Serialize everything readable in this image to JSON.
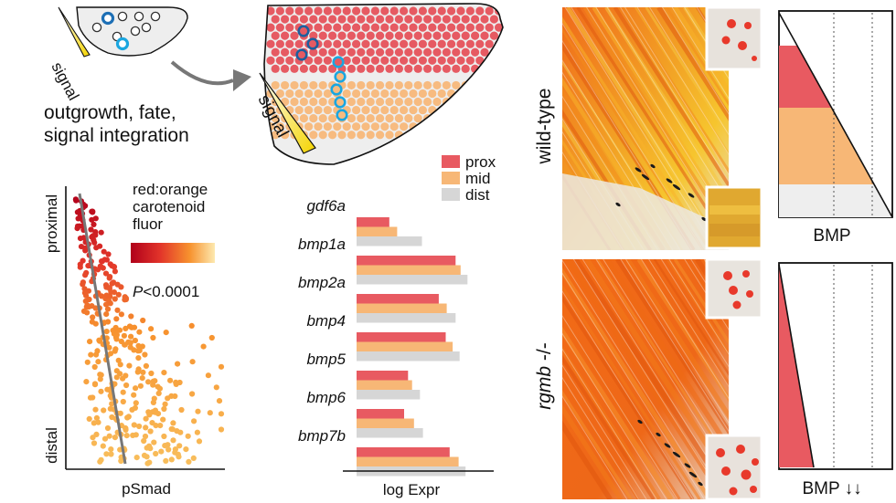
{
  "schematic": {
    "signal_label_small": "signal",
    "signal_label_large": "signal",
    "caption_lines": [
      "outgrowth, fate,",
      "signal integration"
    ]
  },
  "scatter": {
    "legend_lines": [
      "red:orange",
      "carotenoid",
      "fluor"
    ],
    "p_italic": "P",
    "p_rest": "<0.0001",
    "y_top_label": "proximal",
    "y_bottom_label": "distal",
    "x_label": "pSmad",
    "gradient_colors": [
      "#b0001a",
      "#e2342a",
      "#f7922e",
      "#fde9b0"
    ]
  },
  "chart_data": {
    "type": "bar",
    "orientation": "horizontal",
    "categories": [
      "gdf6a",
      "bmp1a",
      "bmp2a",
      "bmp4",
      "bmp5",
      "bmp6",
      "bmp7b"
    ],
    "series": [
      {
        "name": "prox",
        "color": "#e85a61",
        "values": [
          0.33,
          1.0,
          0.83,
          0.9,
          0.52,
          0.48,
          0.94
        ]
      },
      {
        "name": "mid",
        "color": "#f7b776",
        "values": [
          0.41,
          1.05,
          0.91,
          0.97,
          0.56,
          0.58,
          1.03
        ]
      },
      {
        "name": "dist",
        "color": "#d6d6d6",
        "values": [
          0.66,
          1.12,
          1.0,
          1.04,
          0.64,
          0.67,
          1.1
        ]
      }
    ],
    "xlabel": "log Expr",
    "xlim": [
      0,
      1.2
    ]
  },
  "photos": {
    "top_label": "wild-type",
    "bottom_label_italic": "rgmb",
    "bottom_label_rest": " -/-"
  },
  "bmp": {
    "top_label": "BMP",
    "bottom_label": "BMP",
    "bottom_arrows": "↓↓",
    "bands_top": [
      {
        "zone": "prox",
        "color": "#e85a61"
      },
      {
        "zone": "mid",
        "color": "#f7b776"
      },
      {
        "zone": "dist",
        "color": "#eeeeee"
      }
    ],
    "bottom_fill_color": "#e85a61"
  }
}
